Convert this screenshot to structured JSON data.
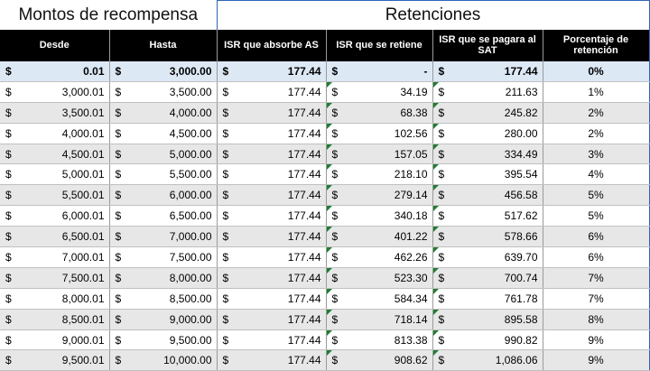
{
  "groups": {
    "left": "Montos de recompensa",
    "right": "Retenciones"
  },
  "columns": [
    "Desde",
    "Hasta",
    "ISR que absorbe AS",
    "ISR que se retiene",
    "ISR que se pagara al SAT",
    "Porcentaje de retención"
  ],
  "currency_symbol": "$",
  "rows": [
    {
      "desde": "0.01",
      "hasta": "3,000.00",
      "absorbe": "177.44",
      "retiene": "-",
      "sat": "177.44",
      "pct": "0%"
    },
    {
      "desde": "3,000.01",
      "hasta": "3,500.00",
      "absorbe": "177.44",
      "retiene": "34.19",
      "sat": "211.63",
      "pct": "1%"
    },
    {
      "desde": "3,500.01",
      "hasta": "4,000.00",
      "absorbe": "177.44",
      "retiene": "68.38",
      "sat": "245.82",
      "pct": "2%"
    },
    {
      "desde": "4,000.01",
      "hasta": "4,500.00",
      "absorbe": "177.44",
      "retiene": "102.56",
      "sat": "280.00",
      "pct": "2%"
    },
    {
      "desde": "4,500.01",
      "hasta": "5,000.00",
      "absorbe": "177.44",
      "retiene": "157.05",
      "sat": "334.49",
      "pct": "3%"
    },
    {
      "desde": "5,000.01",
      "hasta": "5,500.00",
      "absorbe": "177.44",
      "retiene": "218.10",
      "sat": "395.54",
      "pct": "4%"
    },
    {
      "desde": "5,500.01",
      "hasta": "6,000.00",
      "absorbe": "177.44",
      "retiene": "279.14",
      "sat": "456.58",
      "pct": "5%"
    },
    {
      "desde": "6,000.01",
      "hasta": "6,500.00",
      "absorbe": "177.44",
      "retiene": "340.18",
      "sat": "517.62",
      "pct": "5%"
    },
    {
      "desde": "6,500.01",
      "hasta": "7,000.00",
      "absorbe": "177.44",
      "retiene": "401.22",
      "sat": "578.66",
      "pct": "6%"
    },
    {
      "desde": "7,000.01",
      "hasta": "7,500.00",
      "absorbe": "177.44",
      "retiene": "462.26",
      "sat": "639.70",
      "pct": "6%"
    },
    {
      "desde": "7,500.01",
      "hasta": "8,000.00",
      "absorbe": "177.44",
      "retiene": "523.30",
      "sat": "700.74",
      "pct": "7%"
    },
    {
      "desde": "8,000.01",
      "hasta": "8,500.00",
      "absorbe": "177.44",
      "retiene": "584.34",
      "sat": "761.78",
      "pct": "7%"
    },
    {
      "desde": "8,500.01",
      "hasta": "9,000.00",
      "absorbe": "177.44",
      "retiene": "718.14",
      "sat": "895.58",
      "pct": "8%"
    },
    {
      "desde": "9,000.01",
      "hasta": "9,500.00",
      "absorbe": "177.44",
      "retiene": "813.38",
      "sat": "990.82",
      "pct": "9%"
    },
    {
      "desde": "9,500.01",
      "hasta": "10,000.00",
      "absorbe": "177.44",
      "retiene": "908.62",
      "sat": "1,086.06",
      "pct": "9%"
    }
  ],
  "colors": {
    "header_bg": "#000000",
    "header_text": "#ffffff",
    "first_row_bg": "#dde8f5",
    "stripe_bg": "#e7e7e7",
    "group_border": "#2f63b8",
    "indicator": "#1e7d32"
  }
}
